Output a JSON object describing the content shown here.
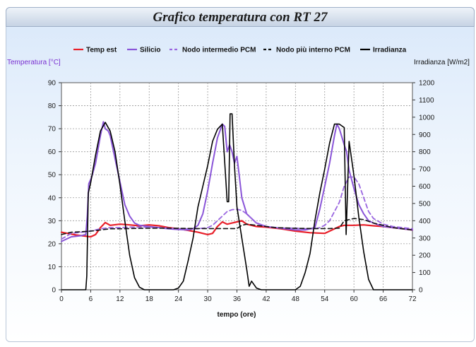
{
  "window": {
    "title": "Grafico temperatura con RT 27"
  },
  "chart_data": {
    "type": "line",
    "title": "Grafico temperatura con RT 27",
    "xlabel": "tempo (ore)",
    "ylabel_left": "Temperatura [°C]",
    "ylabel_right": "Irradianza [W/m2]",
    "xlim": [
      0,
      72
    ],
    "ylim_left": [
      0,
      90
    ],
    "ylim_right": [
      0,
      1200
    ],
    "xticks": [
      0,
      6,
      12,
      18,
      24,
      30,
      36,
      42,
      48,
      54,
      60,
      66,
      72
    ],
    "yticks_left": [
      0,
      10,
      20,
      30,
      40,
      50,
      60,
      70,
      80,
      90
    ],
    "yticks_right": [
      0,
      100,
      200,
      300,
      400,
      500,
      600,
      700,
      800,
      900,
      1000,
      1100,
      1200
    ],
    "grid": true,
    "legend_position": "top",
    "series": [
      {
        "name": "Temp est",
        "axis": "left",
        "color": "#e8202a",
        "style": "solid",
        "width": 2.2,
        "points": [
          [
            0,
            25
          ],
          [
            3,
            23.8
          ],
          [
            6,
            23
          ],
          [
            7,
            24
          ],
          [
            8,
            27
          ],
          [
            9,
            29.2
          ],
          [
            10,
            28
          ],
          [
            12,
            28.5
          ],
          [
            14,
            28.2
          ],
          [
            16,
            27.8
          ],
          [
            18,
            28.2
          ],
          [
            20,
            27.8
          ],
          [
            22,
            27
          ],
          [
            24,
            26.5
          ],
          [
            26,
            25.8
          ],
          [
            28,
            25
          ],
          [
            30,
            24
          ],
          [
            31,
            24.5
          ],
          [
            32,
            27.5
          ],
          [
            33,
            29.5
          ],
          [
            34,
            28.5
          ],
          [
            35,
            29
          ],
          [
            36,
            29.5
          ],
          [
            37,
            30
          ],
          [
            38,
            28.5
          ],
          [
            40,
            27.5
          ],
          [
            42,
            27.2
          ],
          [
            45,
            26.5
          ],
          [
            48,
            25.5
          ],
          [
            51,
            24.8
          ],
          [
            54,
            24.5
          ],
          [
            55,
            25.5
          ],
          [
            56,
            26.5
          ],
          [
            57,
            27.5
          ],
          [
            58,
            28
          ],
          [
            60,
            28
          ],
          [
            62,
            28.2
          ],
          [
            64,
            27.8
          ],
          [
            66,
            27.5
          ],
          [
            68,
            27
          ],
          [
            70,
            26.5
          ],
          [
            72,
            26
          ]
        ]
      },
      {
        "name": "Silicio",
        "axis": "left",
        "color": "#8a55d8",
        "style": "solid",
        "width": 2,
        "points": [
          [
            0,
            21
          ],
          [
            2,
            23
          ],
          [
            4,
            23.5
          ],
          [
            5,
            24
          ],
          [
            5.3,
            32
          ],
          [
            5.6,
            46
          ],
          [
            6.2,
            49
          ],
          [
            7,
            55
          ],
          [
            8,
            67
          ],
          [
            8.6,
            73
          ],
          [
            9,
            70
          ],
          [
            9.6,
            69
          ],
          [
            10,
            67
          ],
          [
            11,
            57
          ],
          [
            12,
            47
          ],
          [
            13,
            37
          ],
          [
            14,
            32
          ],
          [
            15,
            29
          ],
          [
            16,
            28
          ],
          [
            18,
            27.5
          ],
          [
            20,
            27
          ],
          [
            22,
            26.5
          ],
          [
            24,
            26.2
          ],
          [
            26,
            26
          ],
          [
            27,
            26.5
          ],
          [
            28,
            28
          ],
          [
            29,
            33
          ],
          [
            30,
            43
          ],
          [
            31,
            55
          ],
          [
            32,
            66
          ],
          [
            33,
            72
          ],
          [
            33.5,
            71
          ],
          [
            34,
            60
          ],
          [
            34.5,
            63
          ],
          [
            35,
            60
          ],
          [
            35.5,
            55
          ],
          [
            36,
            58
          ],
          [
            36.5,
            49
          ],
          [
            37,
            40
          ],
          [
            38,
            33
          ],
          [
            40,
            29
          ],
          [
            42,
            27.5
          ],
          [
            44,
            27
          ],
          [
            46,
            26.5
          ],
          [
            48,
            26
          ],
          [
            50,
            26
          ],
          [
            52,
            27
          ],
          [
            53,
            35
          ],
          [
            54,
            45
          ],
          [
            55,
            55
          ],
          [
            56,
            67
          ],
          [
            56.5,
            72
          ],
          [
            57,
            70
          ],
          [
            58,
            63
          ],
          [
            58.5,
            60
          ],
          [
            59,
            52
          ],
          [
            60,
            44
          ],
          [
            61,
            37
          ],
          [
            62,
            33
          ],
          [
            63,
            30
          ],
          [
            64,
            29
          ],
          [
            66,
            27.5
          ],
          [
            68,
            27
          ],
          [
            70,
            26.5
          ],
          [
            72,
            26
          ]
        ]
      },
      {
        "name": "Nodo intermedio PCM",
        "axis": "left",
        "color": "#9a66e0",
        "style": "dash",
        "width": 1.8,
        "points": [
          [
            0,
            22
          ],
          [
            2,
            24.5
          ],
          [
            4,
            25
          ],
          [
            6,
            25.5
          ],
          [
            7,
            26
          ],
          [
            8,
            26.5
          ],
          [
            10,
            27
          ],
          [
            12,
            27
          ],
          [
            14,
            27.2
          ],
          [
            16,
            27.2
          ],
          [
            18,
            27.2
          ],
          [
            20,
            27
          ],
          [
            22,
            26.8
          ],
          [
            24,
            26.5
          ],
          [
            26,
            26.5
          ],
          [
            28,
            26.5
          ],
          [
            30,
            27
          ],
          [
            31,
            28
          ],
          [
            32,
            30
          ],
          [
            33,
            32
          ],
          [
            34,
            34
          ],
          [
            35,
            34.8
          ],
          [
            36,
            35
          ],
          [
            37,
            34.5
          ],
          [
            38,
            33
          ],
          [
            39,
            31
          ],
          [
            40,
            29
          ],
          [
            42,
            27.5
          ],
          [
            44,
            27
          ],
          [
            46,
            26.8
          ],
          [
            48,
            26.8
          ],
          [
            50,
            26.5
          ],
          [
            52,
            26.5
          ],
          [
            53,
            27
          ],
          [
            54,
            28
          ],
          [
            55,
            30
          ],
          [
            56,
            34
          ],
          [
            57,
            38
          ],
          [
            58,
            45
          ],
          [
            59,
            49
          ],
          [
            60,
            49
          ],
          [
            61,
            46
          ],
          [
            62,
            40
          ],
          [
            63,
            34
          ],
          [
            64,
            31
          ],
          [
            66,
            28.5
          ],
          [
            68,
            27.5
          ],
          [
            70,
            27
          ],
          [
            72,
            26.5
          ]
        ]
      },
      {
        "name": "Nodo più interno PCM",
        "axis": "left",
        "color": "#111111",
        "style": "dash",
        "width": 1.6,
        "points": [
          [
            0,
            24
          ],
          [
            2,
            25
          ],
          [
            4,
            25.2
          ],
          [
            6,
            25.5
          ],
          [
            8,
            26
          ],
          [
            10,
            26.5
          ],
          [
            12,
            26.5
          ],
          [
            16,
            26.7
          ],
          [
            20,
            26.8
          ],
          [
            24,
            26.7
          ],
          [
            28,
            26.6
          ],
          [
            32,
            26.6
          ],
          [
            36,
            26.6
          ],
          [
            37,
            28
          ],
          [
            38,
            28.5
          ],
          [
            40,
            28
          ],
          [
            42,
            27.5
          ],
          [
            44,
            27
          ],
          [
            48,
            26.7
          ],
          [
            52,
            26.6
          ],
          [
            55,
            26.6
          ],
          [
            57,
            26.8
          ],
          [
            58,
            30
          ],
          [
            60,
            31
          ],
          [
            62,
            30.5
          ],
          [
            64,
            29
          ],
          [
            66,
            28
          ],
          [
            68,
            27
          ],
          [
            70,
            26.5
          ],
          [
            72,
            26
          ]
        ]
      },
      {
        "name": "Irradianza",
        "axis": "right",
        "color": "#000000",
        "style": "solid",
        "width": 1.6,
        "points": [
          [
            0,
            0
          ],
          [
            5,
            0
          ],
          [
            5.2,
            80
          ],
          [
            5.5,
            560
          ],
          [
            6,
            620
          ],
          [
            7,
            780
          ],
          [
            8,
            920
          ],
          [
            9,
            970
          ],
          [
            10,
            920
          ],
          [
            11,
            800
          ],
          [
            12,
            610
          ],
          [
            13,
            400
          ],
          [
            14,
            200
          ],
          [
            15,
            70
          ],
          [
            16,
            15
          ],
          [
            17,
            0
          ],
          [
            23,
            0
          ],
          [
            24,
            10
          ],
          [
            25,
            50
          ],
          [
            26,
            170
          ],
          [
            27,
            300
          ],
          [
            28,
            480
          ],
          [
            29,
            600
          ],
          [
            30,
            720
          ],
          [
            31,
            860
          ],
          [
            32,
            930
          ],
          [
            33,
            960
          ],
          [
            34,
            510
          ],
          [
            34.3,
            510
          ],
          [
            34.6,
            1020
          ],
          [
            35,
            1020
          ],
          [
            35.5,
            720
          ],
          [
            36,
            480
          ],
          [
            37,
            300
          ],
          [
            38,
            120
          ],
          [
            38.5,
            20
          ],
          [
            39,
            50
          ],
          [
            40,
            10
          ],
          [
            41,
            0
          ],
          [
            48,
            0
          ],
          [
            49,
            20
          ],
          [
            50,
            100
          ],
          [
            51,
            210
          ],
          [
            52,
            400
          ],
          [
            53,
            560
          ],
          [
            54,
            700
          ],
          [
            55,
            850
          ],
          [
            56,
            960
          ],
          [
            57,
            960
          ],
          [
            58,
            940
          ],
          [
            58.4,
            320
          ],
          [
            59,
            860
          ],
          [
            60,
            660
          ],
          [
            61,
            420
          ],
          [
            62,
            220
          ],
          [
            63,
            60
          ],
          [
            64,
            0
          ],
          [
            72,
            0
          ]
        ]
      }
    ]
  }
}
